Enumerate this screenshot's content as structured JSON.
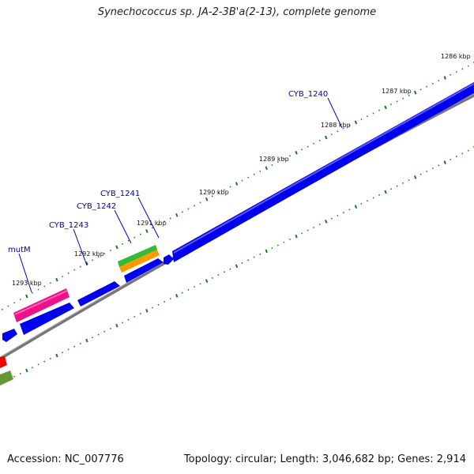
{
  "title": "Synechococcus sp. JA-2-3B'a(2-13), complete genome",
  "footer": {
    "accession": "Accession: NC_007776",
    "summary": "Topology: circular; Length: 3,046,682 bp; Genes: 2,914"
  },
  "colors": {
    "cds_forward": "#0000ee",
    "cds_reverse": "#0000ee",
    "backbone": "#777777",
    "tick": "#1a7a1a",
    "label": "#0000aa",
    "mutM": "#ee1188",
    "rRNA_green": "#33bb33",
    "rRNA_orange": "#ff9900",
    "red_feature": "#ee0000",
    "olive_feature": "#669933"
  },
  "ruler_labels": [
    "1286 kbp",
    "1287 kbp",
    "1288 kbp",
    "1289 kbp",
    "1290 kbp",
    "1291 kbp",
    "1292 kbp",
    "1293 kbp"
  ],
  "gene_labels": [
    "CYB_1240",
    "CYB_1241",
    "CYB_1242",
    "CYB_1243",
    "mutM"
  ]
}
